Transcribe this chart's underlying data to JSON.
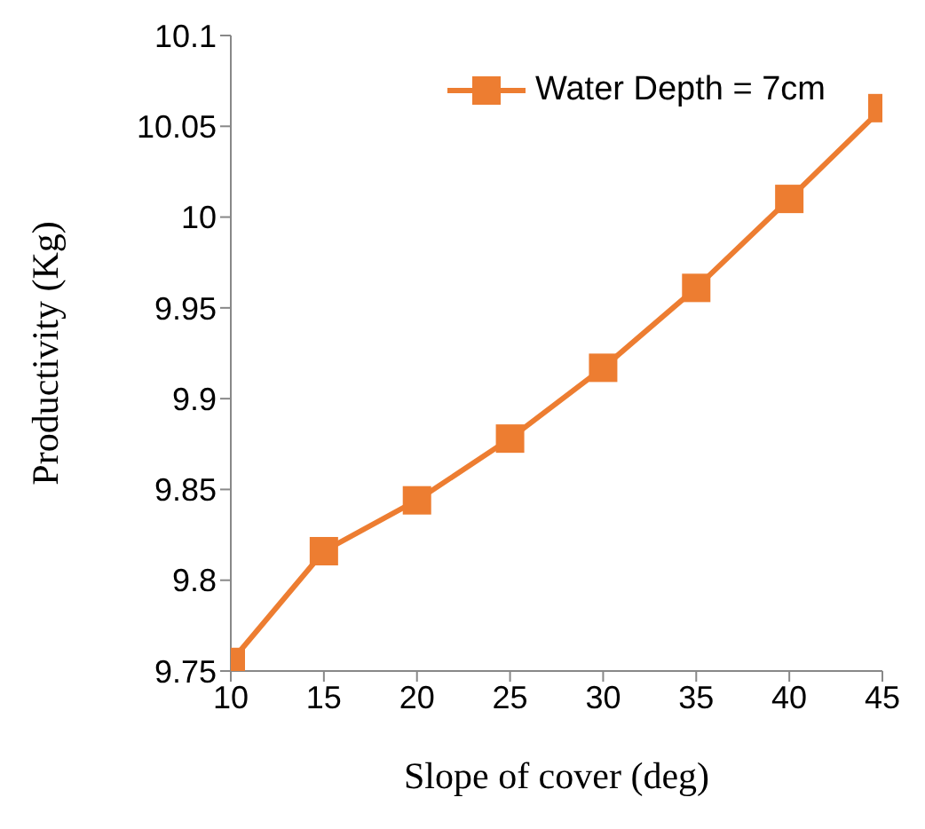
{
  "chart_data": {
    "type": "line",
    "xlabel": "Slope of cover (deg)",
    "ylabel": "Productivity (Kg)",
    "x": [
      10,
      15,
      20,
      25,
      30,
      35,
      40,
      45
    ],
    "series": [
      {
        "name": "Water Depth = 7cm",
        "color": "#ed7d31",
        "values": [
          9.755,
          9.816,
          9.844,
          9.878,
          9.917,
          9.961,
          10.01,
          10.06
        ]
      }
    ],
    "xlim": [
      10,
      45
    ],
    "xticks": [
      10,
      15,
      20,
      25,
      30,
      35,
      40,
      45
    ],
    "ylim": [
      9.75,
      10.1
    ],
    "yticks": [
      9.75,
      9.8,
      9.85,
      9.9,
      9.95,
      10,
      10.05,
      10.1
    ],
    "grid": false,
    "legend": "top right",
    "marker": "square",
    "line_style": "solid"
  }
}
